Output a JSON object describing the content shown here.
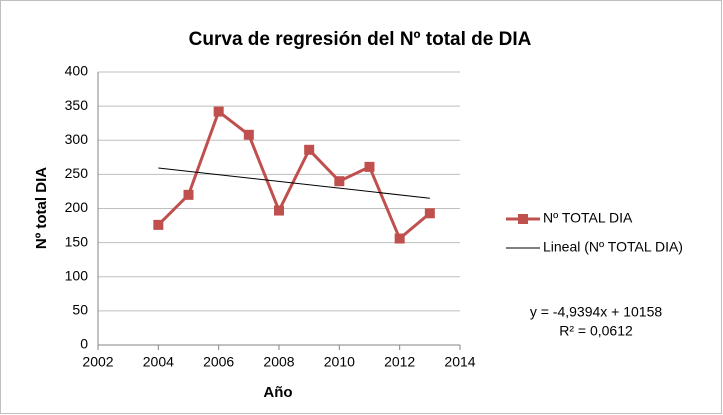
{
  "chart_data": {
    "type": "line",
    "title": "Curva de regresión del Nº total de DIA",
    "x_label": "Año",
    "y_label": "Nº total DIA",
    "x": [
      2004,
      2005,
      2006,
      2007,
      2008,
      2009,
      2010,
      2011,
      2012,
      2013
    ],
    "series": [
      {
        "name": "Nº TOTAL DIA",
        "color": "#c0504d",
        "marker": "square",
        "values": [
          176,
          220,
          342,
          308,
          197,
          286,
          240,
          261,
          156,
          193
        ]
      },
      {
        "name": "Lineal (Nº TOTAL DIA)",
        "color": "#000000",
        "marker": "none",
        "x": [
          2004,
          2013
        ],
        "values": [
          259.4,
          215
        ]
      }
    ],
    "xlim": [
      2002,
      2014
    ],
    "xticks": [
      2002,
      2004,
      2006,
      2008,
      2010,
      2012,
      2014
    ],
    "ylim": [
      0,
      400
    ],
    "yticks": [
      0,
      50,
      100,
      150,
      200,
      250,
      300,
      350,
      400
    ],
    "grid": true,
    "legend": "right",
    "annotations": [
      "y = -4,9394x + 10158",
      "R² = 0,0612"
    ]
  }
}
